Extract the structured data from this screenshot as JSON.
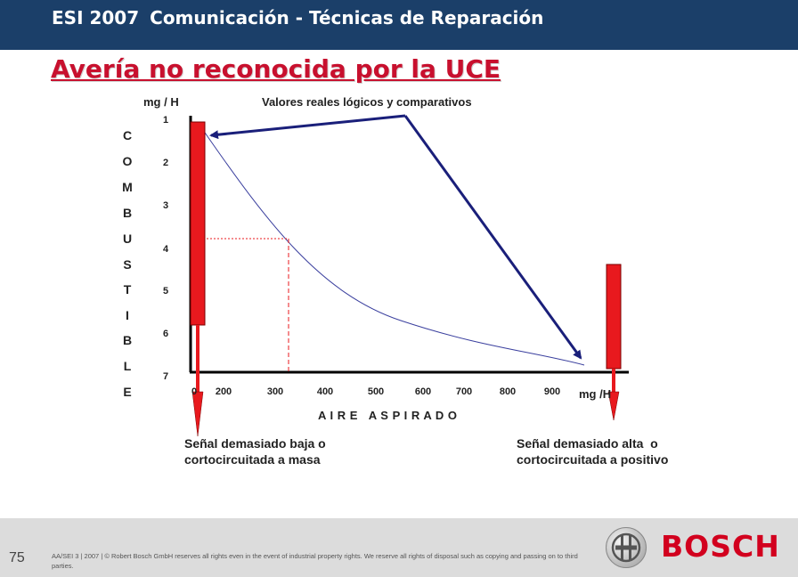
{
  "header": {
    "code": "ESI 2007",
    "title": "Comunicación - Técnicas de Reparación"
  },
  "slide": {
    "title": "Avería no reconocida por la UCE"
  },
  "diagram": {
    "unit_top": "mg / H",
    "subtitle": "Valores reales lógicos y comparativos",
    "y_axis_letters": [
      "C",
      "O",
      "M",
      "B",
      "U",
      "S",
      "T",
      "I",
      "B",
      "L",
      "E"
    ],
    "y_ticks": [
      "1",
      "2",
      "3",
      "4",
      "5",
      "6",
      "7"
    ],
    "x_ticks": [
      "0",
      "200",
      "300",
      "400",
      "500",
      "600",
      "700",
      "800",
      "900"
    ],
    "x_label": "A I R E   A S P I R A D O",
    "unit_right": "mg /H",
    "note_left": [
      "Señal demasiado baja o",
      "cortocircuitada a masa"
    ],
    "note_right": [
      "Señal demasiado alta  o",
      "cortocircuitada a positivo"
    ]
  },
  "footer": {
    "page_number": "75",
    "legal": "AA/SEI 3 | 2007 | © Robert Bosch GmbH reserves all rights even in the event of industrial property rights. We reserve all rights of disposal such as copying and passing on to third parties.",
    "brand": "BOSCH"
  },
  "colors": {
    "header_bg": "#1b3f69",
    "title_red": "#c8102e",
    "bar_red": "#e8191e",
    "arrow_navy": "#1a1f7a",
    "curve_blue": "#3a3f9e"
  }
}
